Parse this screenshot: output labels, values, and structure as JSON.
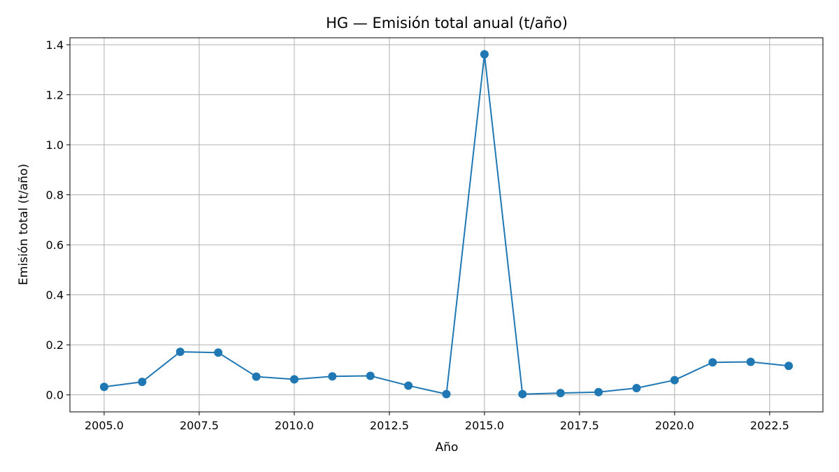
{
  "chart_data": {
    "type": "line",
    "title": "HG — Emisión total anual (t/año)",
    "xlabel": "Año",
    "ylabel": "Emisión total (t/año)",
    "xlim": [
      2004.1,
      2023.9
    ],
    "ylim": [
      -0.068,
      1.428
    ],
    "x_ticks": [
      2005.0,
      2007.5,
      2010.0,
      2012.5,
      2015.0,
      2017.5,
      2020.0,
      2022.5
    ],
    "x_tick_labels": [
      "2005.0",
      "2007.5",
      "2010.0",
      "2012.5",
      "2015.0",
      "2017.5",
      "2020.0",
      "2022.5"
    ],
    "y_ticks": [
      0.0,
      0.2,
      0.4,
      0.6,
      0.8,
      1.0,
      1.2,
      1.4
    ],
    "y_tick_labels": [
      "0.0",
      "0.2",
      "0.4",
      "0.6",
      "0.8",
      "1.0",
      "1.2",
      "1.4"
    ],
    "grid": true,
    "color": "#1f77b4",
    "series": [
      {
        "x": [
          2005,
          2006,
          2007,
          2008,
          2009,
          2010,
          2011,
          2012,
          2013,
          2014,
          2015,
          2016,
          2017,
          2018,
          2019,
          2020,
          2021,
          2022,
          2023
        ],
        "y": [
          0.032,
          0.052,
          0.172,
          0.169,
          0.073,
          0.062,
          0.074,
          0.076,
          0.037,
          0.003,
          1.362,
          0.003,
          0.007,
          0.011,
          0.027,
          0.059,
          0.13,
          0.132,
          0.116
        ]
      }
    ]
  }
}
